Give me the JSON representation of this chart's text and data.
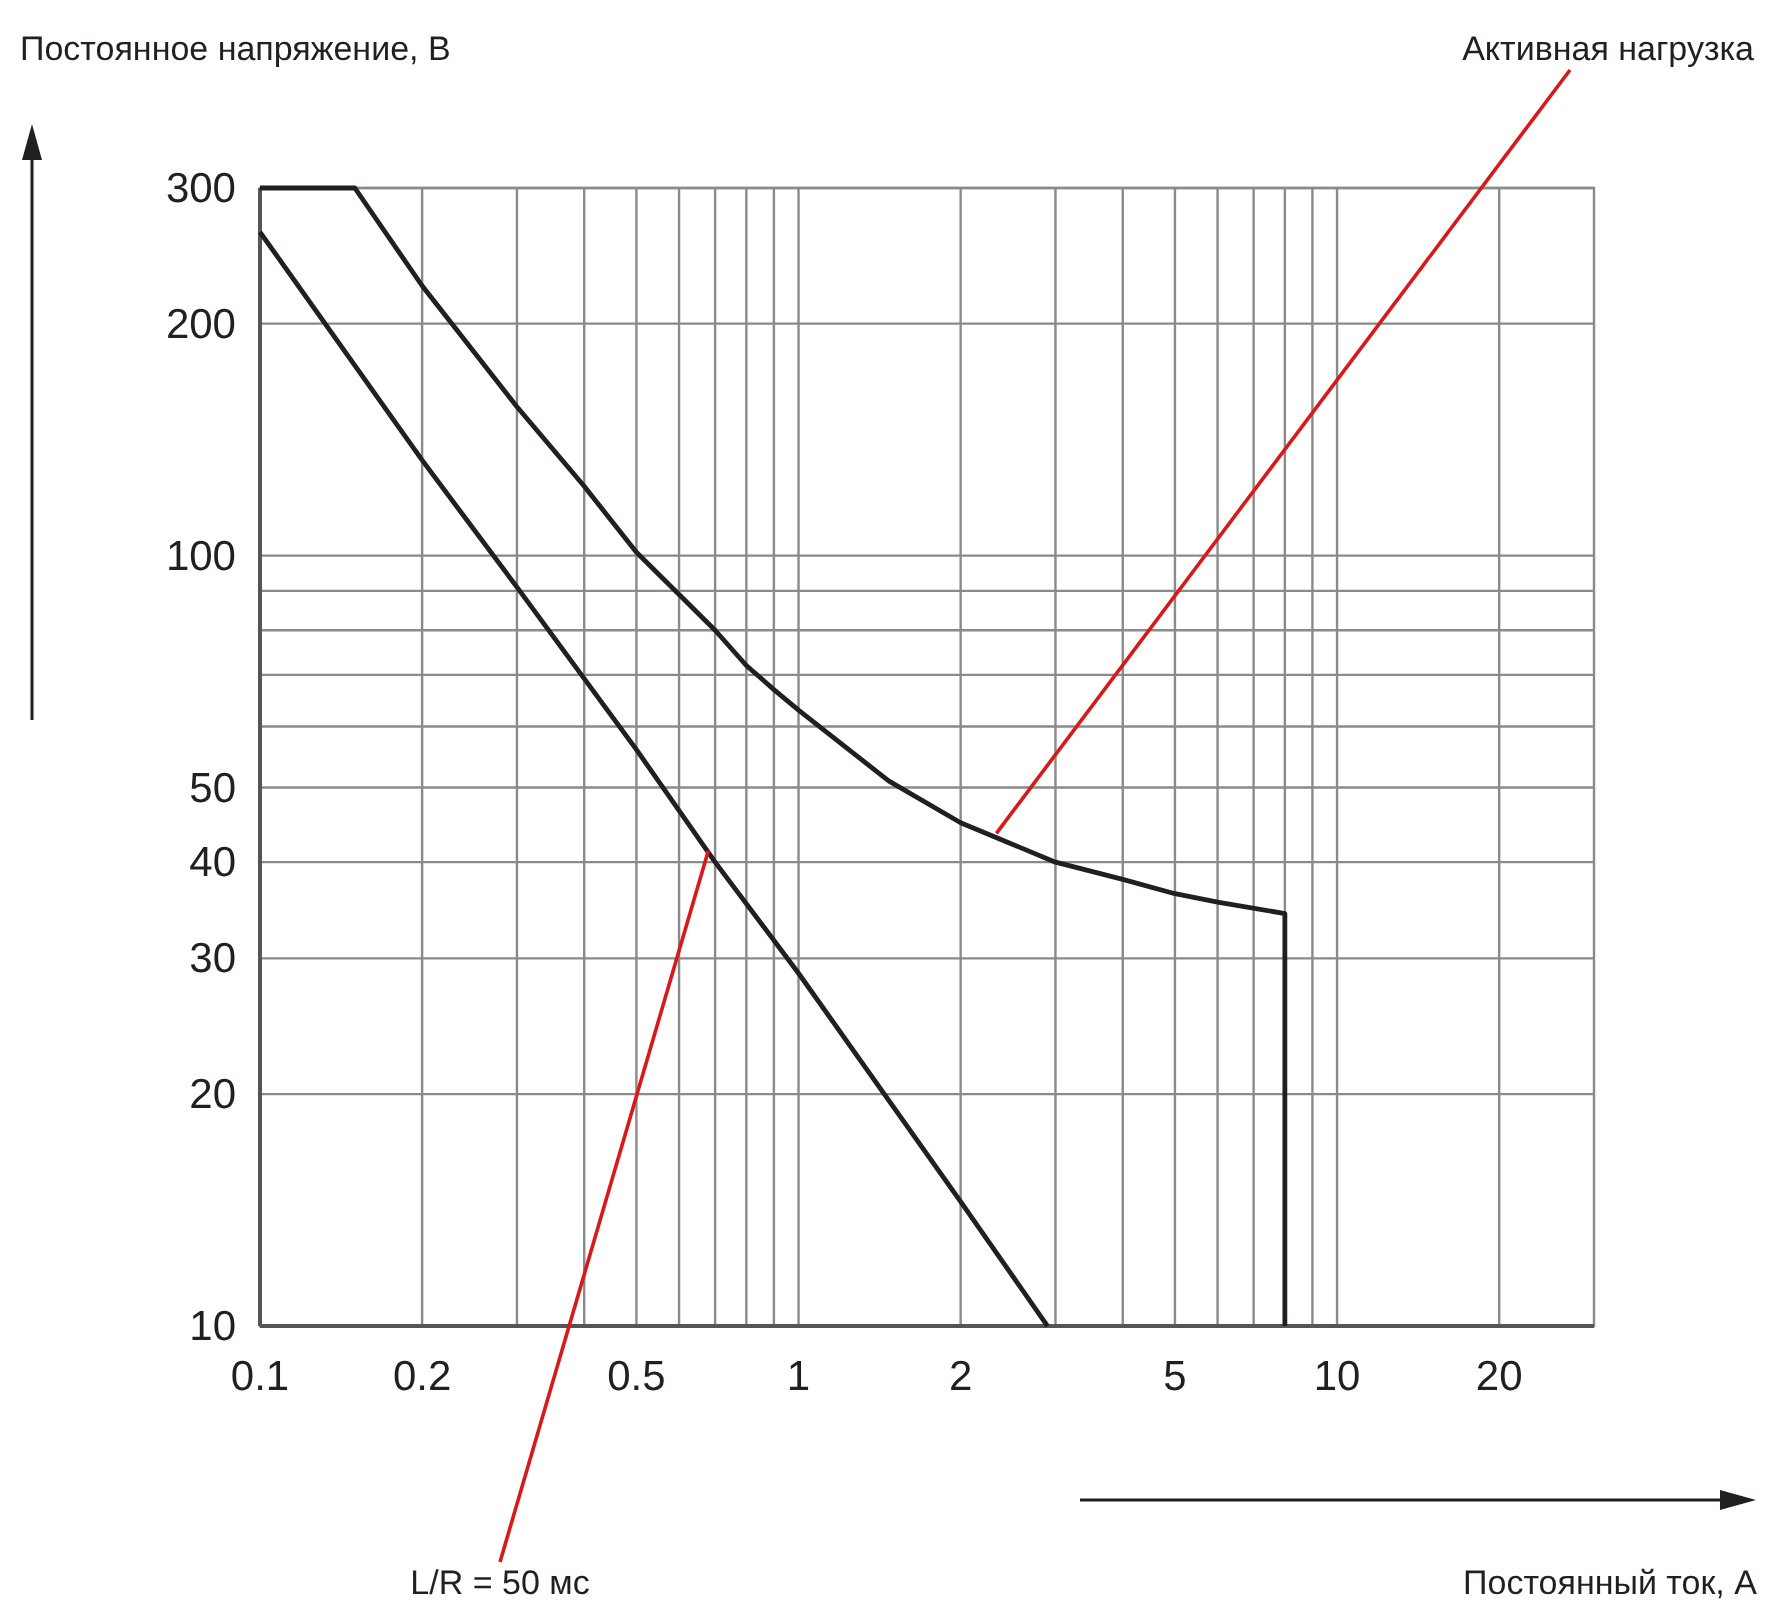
{
  "chart_data": {
    "type": "line",
    "xlabel": "Постоянный ток, А",
    "ylabel": "Постоянное напряжение, В",
    "log": "xy",
    "grid": true,
    "xlim": [
      0.1,
      30
    ],
    "ylim": [
      10,
      300
    ],
    "xticks": [
      0.1,
      0.2,
      {
        "value": 0.3,
        "label": null
      },
      {
        "value": 0.4,
        "label": null
      },
      0.5,
      {
        "value": 0.6,
        "label": null
      },
      {
        "value": 0.7,
        "label": null
      },
      {
        "value": 0.8,
        "label": null
      },
      {
        "value": 0.9,
        "label": null
      },
      1,
      2,
      {
        "value": 3,
        "label": null
      },
      {
        "value": 4,
        "label": null
      },
      5,
      {
        "value": 6,
        "label": null
      },
      {
        "value": 7,
        "label": null
      },
      {
        "value": 8,
        "label": null
      },
      {
        "value": 9,
        "label": null
      },
      10,
      20
    ],
    "yticks": [
      10,
      20,
      30,
      40,
      50,
      {
        "value": 60,
        "label": null
      },
      {
        "value": 70,
        "label": null
      },
      {
        "value": 80,
        "label": null
      },
      {
        "value": 90,
        "label": null
      },
      100,
      200,
      300
    ],
    "series": [
      {
        "color": "#231f20",
        "x": [
          0.1,
          0.15,
          0.2,
          0.3,
          0.4,
          0.5,
          0.6,
          0.7,
          0.8,
          0.9,
          1,
          1.47,
          2,
          3,
          4,
          5,
          6,
          8,
          8
        ],
        "values": [
          300,
          300,
          224,
          156,
          123,
          101,
          89,
          80,
          72,
          67,
          63,
          51,
          45,
          40,
          38,
          36.4,
          35.5,
          34.3,
          10
        ]
      },
      {
        "color": "#231f20",
        "x": [
          0.1,
          0.2,
          0.3,
          0.5,
          0.7,
          1,
          2,
          2.9
        ],
        "values": [
          263,
          133,
          91,
          56,
          40,
          28.7,
          14.5,
          10
        ]
      }
    ],
    "annotations": [
      {
        "text": "Активная нагрузка",
        "x": 2.33,
        "y": 43.6
      },
      {
        "text": "L/R = 50 мс",
        "x": 0.68,
        "y": 41.4
      }
    ]
  }
}
